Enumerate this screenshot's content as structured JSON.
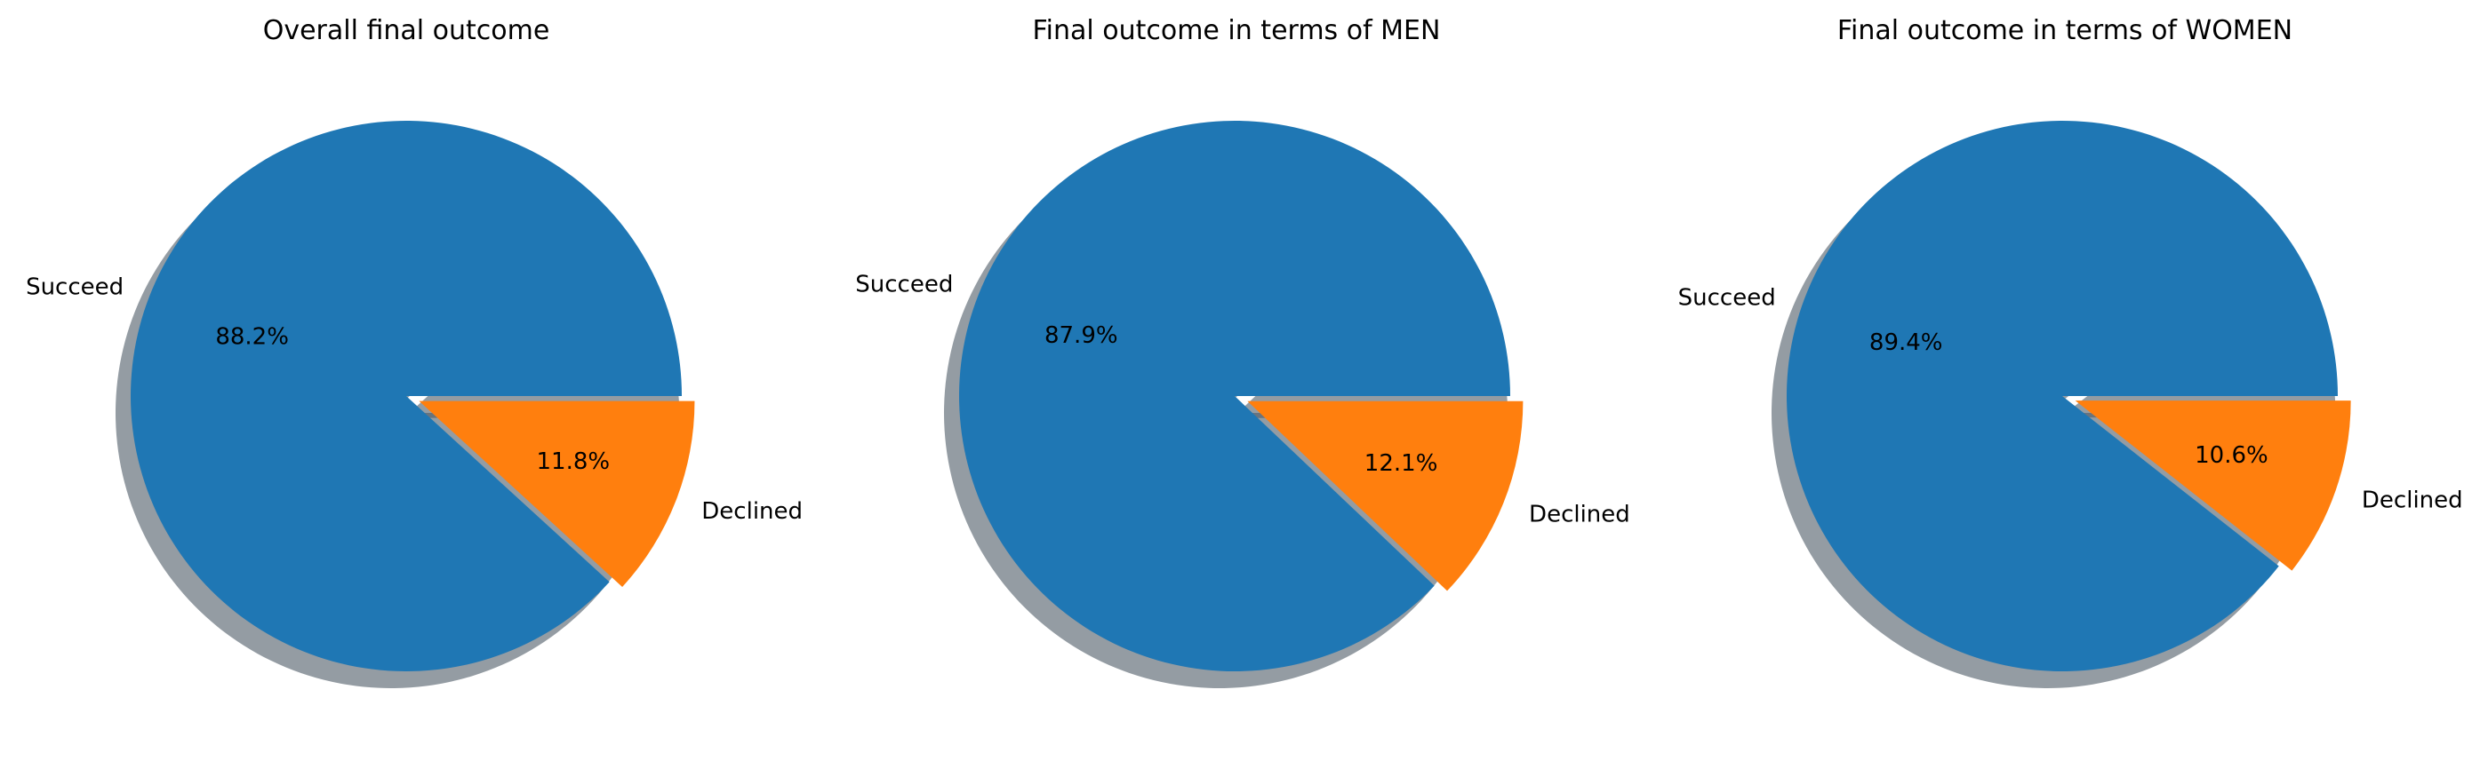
{
  "chart_data": [
    {
      "type": "pie",
      "title": "Overall final outcome",
      "labels": [
        "Succeed",
        "Declined"
      ],
      "values": [
        88.2,
        11.8
      ],
      "value_labels": [
        "88.2%",
        "11.8%"
      ],
      "colors": [
        "#1f77b4",
        "#ff7f0e"
      ],
      "explode": [
        0,
        0.05
      ],
      "shadow": true
    },
    {
      "type": "pie",
      "title": "Final outcome in terms of MEN",
      "labels": [
        "Succeed",
        "Declined"
      ],
      "values": [
        87.9,
        12.1
      ],
      "value_labels": [
        "87.9%",
        "12.1%"
      ],
      "colors": [
        "#1f77b4",
        "#ff7f0e"
      ],
      "explode": [
        0,
        0.05
      ],
      "shadow": true
    },
    {
      "type": "pie",
      "title": "Final outcome in terms of WOMEN",
      "labels": [
        "Succeed",
        "Declined"
      ],
      "values": [
        89.4,
        10.6
      ],
      "value_labels": [
        "89.4%",
        "10.6%"
      ],
      "colors": [
        "#1f77b4",
        "#ff7f0e"
      ],
      "explode": [
        0,
        0.05
      ],
      "shadow": true
    }
  ]
}
